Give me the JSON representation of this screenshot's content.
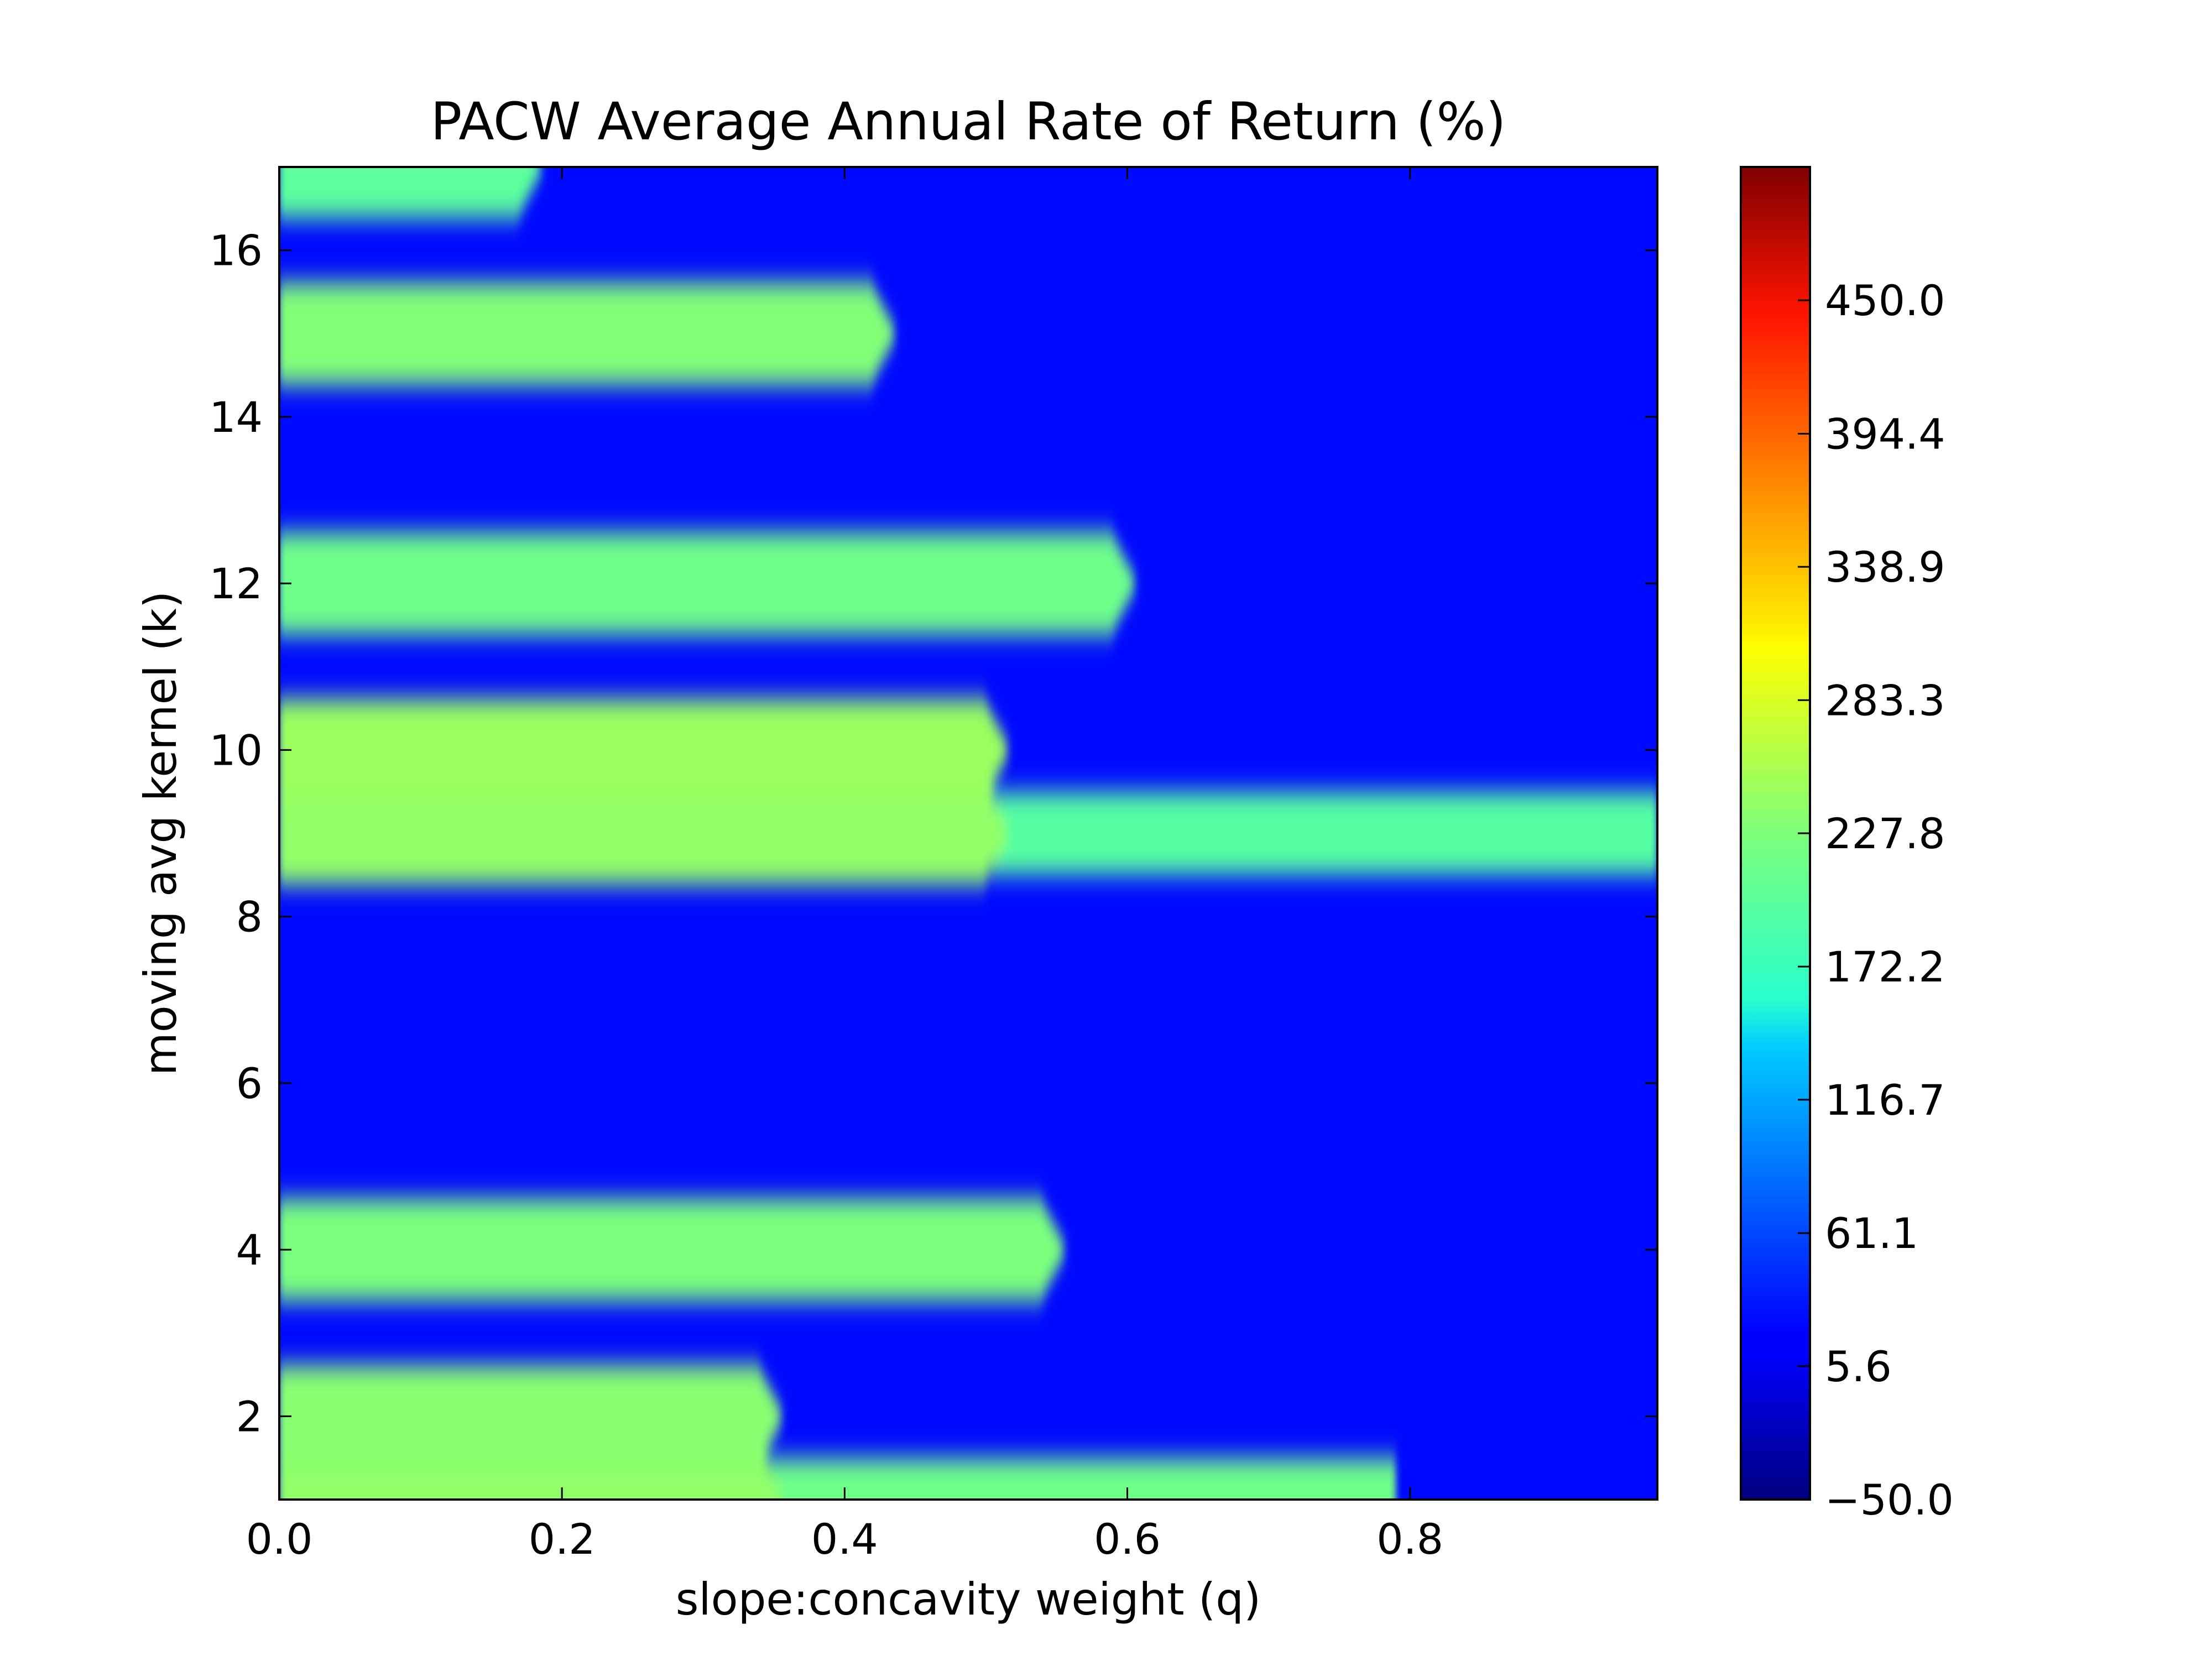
{
  "chart_data": {
    "type": "heatmap",
    "subtype": "filled-contour",
    "title": "PACW Average Annual Rate of Return (%)",
    "xlabel": "slope:concavity weight (q)",
    "ylabel": "moving avg kernel (k)",
    "xlim": [
      0.0,
      0.975
    ],
    "ylim": [
      1,
      17
    ],
    "x_ticks": [
      0.0,
      0.2,
      0.4,
      0.6,
      0.8
    ],
    "x_tick_labels": [
      "0.0",
      "0.2",
      "0.4",
      "0.6",
      "0.8"
    ],
    "y_ticks": [
      2,
      4,
      6,
      8,
      10,
      12,
      14,
      16
    ],
    "y_tick_labels": [
      "2",
      "4",
      "6",
      "8",
      "10",
      "12",
      "14",
      "16"
    ],
    "colormap": "jet",
    "colorbar": {
      "min": -50.0,
      "max": 505.6,
      "ticks": [
        -50.0,
        5.6,
        61.1,
        116.7,
        172.2,
        227.8,
        283.3,
        338.9,
        394.4,
        450.0
      ],
      "tick_labels": [
        "−50.0",
        "5.6",
        "61.1",
        "116.7",
        "172.2",
        "227.8",
        "283.3",
        "338.9",
        "394.4",
        "450.0"
      ]
    },
    "background_value": 25,
    "bands": [
      {
        "k": 1,
        "q_end": 0.35,
        "q_end_extended": 0.79,
        "value": 240,
        "value_extended": 215
      },
      {
        "k": 2,
        "q_end": 0.35,
        "value": 235
      },
      {
        "k": 4,
        "q_end": 0.55,
        "value": 225
      },
      {
        "k": 9,
        "q_end": 0.51,
        "q_end_extended": 0.975,
        "value": 240,
        "value_extended": 195
      },
      {
        "k": 10,
        "q_end": 0.51,
        "value": 245
      },
      {
        "k": 12,
        "q_end": 0.6,
        "value": 215
      },
      {
        "k": 15,
        "q_end": 0.43,
        "value": 230
      },
      {
        "k": 17,
        "q_end": 0.18,
        "value": 200
      }
    ]
  }
}
